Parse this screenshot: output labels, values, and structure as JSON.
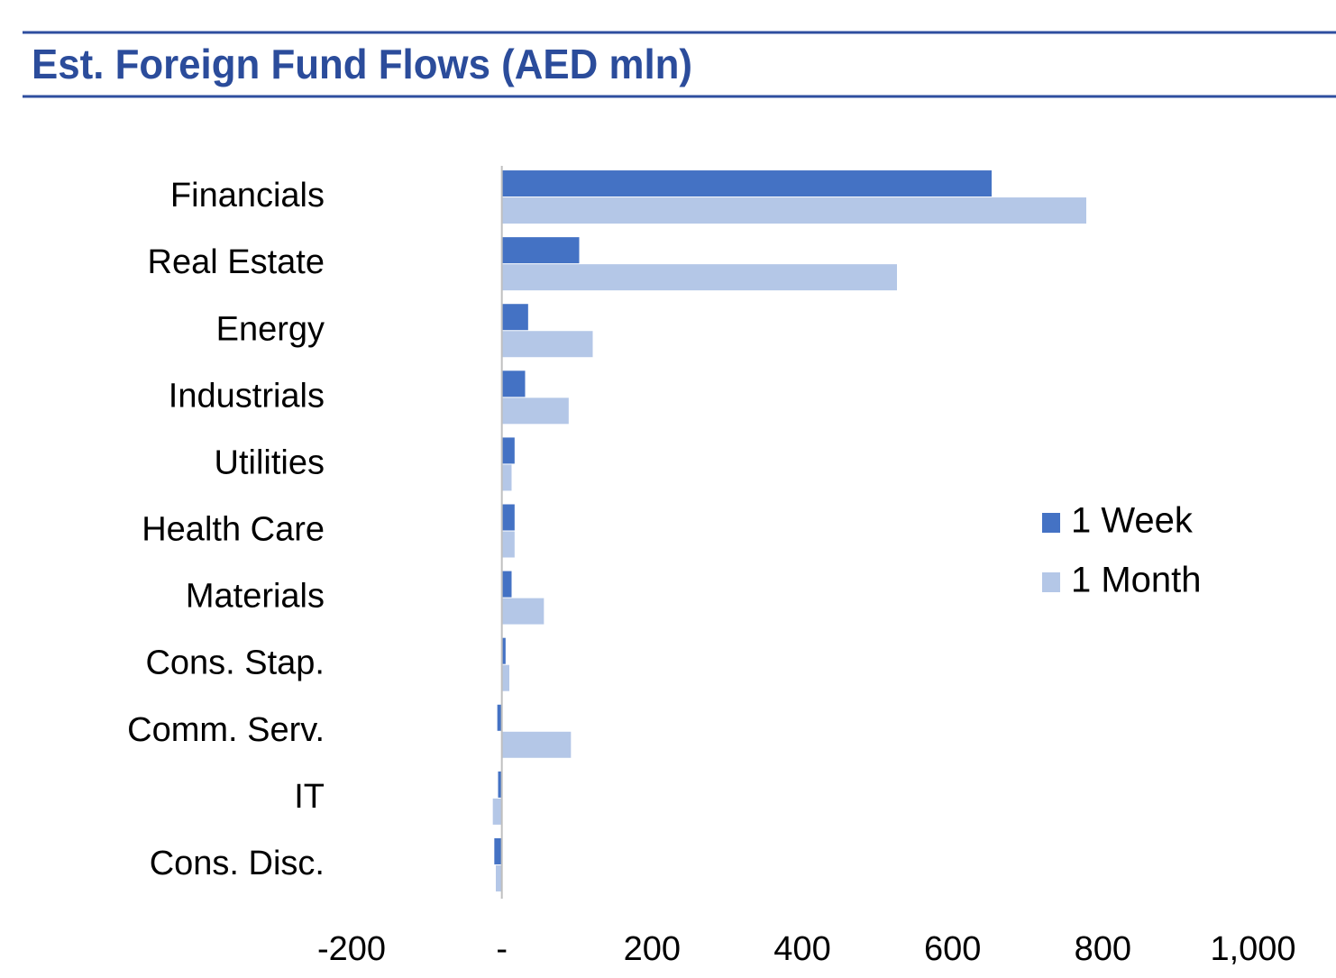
{
  "chart_data": {
    "type": "bar",
    "orientation": "horizontal",
    "title": "Est. Foreign Fund Flows (AED mln)",
    "categories": [
      "Financials",
      "Real Estate",
      "Energy",
      "Industrials",
      "Utilities",
      "Health Care",
      "Materials",
      "Cons. Stap.",
      "Comm. Serv.",
      "IT",
      "Cons. Disc."
    ],
    "series": [
      {
        "name": "1 Week",
        "color": "#4472c4",
        "values": [
          652,
          103,
          35,
          31,
          17,
          17,
          13,
          5,
          -6,
          -5,
          -10
        ]
      },
      {
        "name": "1 Month",
        "color": "#b4c7e7",
        "values": [
          778,
          526,
          121,
          89,
          13,
          17,
          56,
          10,
          92,
          -12,
          -8
        ]
      }
    ],
    "xlim": [
      -200,
      1000
    ],
    "xticks": [
      -200,
      {
        "value": 0,
        "label": "-"
      },
      200,
      400,
      600,
      800,
      {
        "value": 1000,
        "label": "1,000"
      }
    ],
    "grid": false,
    "legend": "right"
  }
}
